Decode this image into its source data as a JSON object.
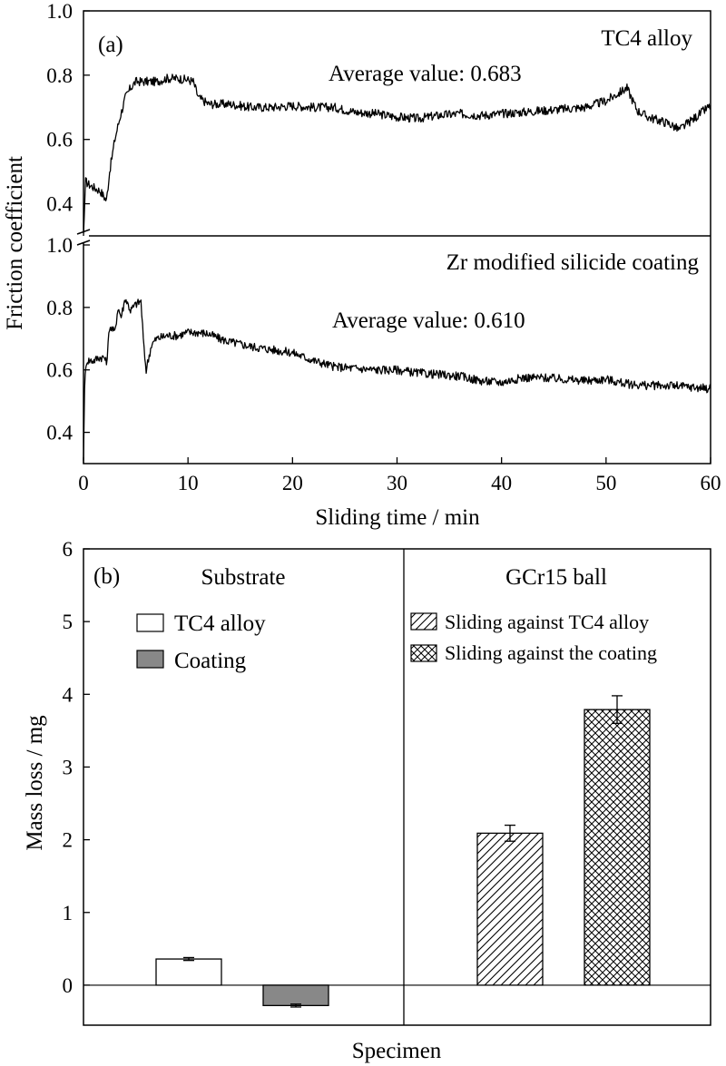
{
  "chart_data": [
    {
      "type": "line",
      "panel_label": "(a)",
      "xlabel": "Sliding time / min",
      "ylabel": "Friction coefficient",
      "xlim": [
        0,
        60
      ],
      "x_ticks": [
        "0",
        "10",
        "20",
        "30",
        "40",
        "50",
        "60"
      ],
      "grid": false,
      "subplots": [
        {
          "title": "TC4 alloy",
          "annotation": "Average value: 0.683",
          "ylim": [
            0.3,
            1.0
          ],
          "y_ticks": [
            "0.4",
            "0.6",
            "0.8",
            "1.0"
          ],
          "series": [
            {
              "x": [
                0,
                0.2,
                0.5,
                1.0,
                1.6,
                2.0,
                2.2,
                2.5,
                3.0,
                3.5,
                4.0,
                4.5,
                5.0,
                6.0,
                7.0,
                8.0,
                9.0,
                10.0,
                10.5,
                11.0,
                12.0,
                14.0,
                16.0,
                18.0,
                20.0,
                22.0,
                24.0,
                26.0,
                28.0,
                30.0,
                32.0,
                34.0,
                36.0,
                38.0,
                40.0,
                42.0,
                44.0,
                46.0,
                48.0,
                50.0,
                51.0,
                52.0,
                53.0,
                54.0,
                56.0,
                57.0,
                58.0,
                59.0,
                60.0
              ],
              "y": [
                0.3,
                0.47,
                0.46,
                0.45,
                0.44,
                0.42,
                0.41,
                0.5,
                0.6,
                0.67,
                0.73,
                0.76,
                0.78,
                0.78,
                0.78,
                0.79,
                0.79,
                0.785,
                0.78,
                0.73,
                0.71,
                0.71,
                0.7,
                0.7,
                0.705,
                0.7,
                0.7,
                0.685,
                0.68,
                0.67,
                0.665,
                0.675,
                0.68,
                0.675,
                0.68,
                0.685,
                0.69,
                0.695,
                0.7,
                0.72,
                0.74,
                0.76,
                0.69,
                0.67,
                0.65,
                0.63,
                0.655,
                0.68,
                0.705
              ]
            }
          ]
        },
        {
          "title": "Zr modified silicide coating",
          "annotation": "Average value: 0.610",
          "ylim": [
            0.3,
            1.0
          ],
          "y_ticks": [
            "0.4",
            "0.6",
            "0.8",
            "1.0"
          ],
          "series": [
            {
              "x": [
                0,
                0.1,
                0.3,
                1.0,
                1.5,
                2.0,
                2.2,
                2.5,
                3.0,
                3.3,
                3.6,
                4.0,
                4.5,
                5.0,
                5.5,
                5.8,
                6.0,
                6.5,
                7.0,
                8.0,
                9.0,
                10.0,
                11.0,
                12.0,
                13.0,
                14.0,
                16.0,
                18.0,
                20.0,
                22.0,
                24.0,
                26.0,
                28.0,
                30.0,
                32.0,
                34.0,
                36.0,
                38.0,
                40.0,
                42.0,
                44.0,
                46.0,
                48.0,
                50.0,
                52.0,
                54.0,
                56.0,
                58.0,
                60.0
              ],
              "y": [
                0.31,
                0.55,
                0.63,
                0.63,
                0.64,
                0.64,
                0.62,
                0.74,
                0.72,
                0.8,
                0.77,
                0.83,
                0.79,
                0.81,
                0.82,
                0.66,
                0.6,
                0.68,
                0.7,
                0.71,
                0.71,
                0.72,
                0.72,
                0.715,
                0.7,
                0.69,
                0.675,
                0.665,
                0.655,
                0.63,
                0.61,
                0.605,
                0.6,
                0.6,
                0.59,
                0.585,
                0.58,
                0.565,
                0.56,
                0.575,
                0.575,
                0.57,
                0.565,
                0.57,
                0.555,
                0.55,
                0.55,
                0.545,
                0.54
              ]
            }
          ]
        }
      ]
    },
    {
      "type": "bar",
      "panel_label": "(b)",
      "xlabel": "Specimen",
      "ylabel": "Mass loss / mg",
      "ylim": [
        -0.55,
        6
      ],
      "y_ticks": [
        "0",
        "1",
        "2",
        "3",
        "4",
        "5",
        "6"
      ],
      "groups": [
        {
          "title": "Substrate",
          "bars": [
            {
              "name": "TC4 alloy",
              "value": 0.36,
              "error": 0.02,
              "fill": "#ffffff"
            },
            {
              "name": "Coating",
              "value": -0.28,
              "error": 0.02,
              "fill": "#888888"
            }
          ]
        },
        {
          "title": "GCr15 ball",
          "bars": [
            {
              "name": "Sliding against TC4 alloy",
              "value": 2.09,
              "error": 0.11,
              "fill": "diagonal-hatch"
            },
            {
              "name": "Sliding against the coating",
              "value": 3.79,
              "error": 0.19,
              "fill": "crosshatch"
            }
          ]
        }
      ]
    }
  ]
}
